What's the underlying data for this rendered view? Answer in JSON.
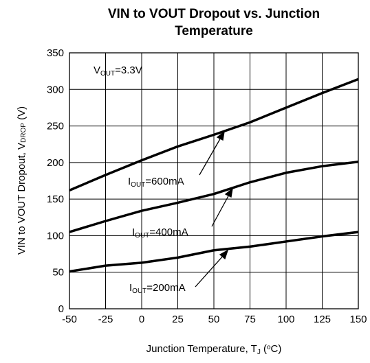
{
  "chart_data": {
    "type": "line",
    "title": "VIN to VOUT Dropout vs. Junction Temperature",
    "x_label": [
      {
        "text": "Junction Temperature, T"
      },
      {
        "text": "J",
        "sub": true
      },
      {
        "text": " ("
      },
      {
        "text": "o",
        "sup": true
      },
      {
        "text": "C)"
      }
    ],
    "y_label": [
      {
        "text": "VIN to VOUT Dropout, V"
      },
      {
        "text": "DROP",
        "sub": true
      },
      {
        "text": " (V)"
      }
    ],
    "x": [
      -50,
      -25,
      0,
      25,
      50,
      75,
      100,
      125,
      150
    ],
    "series": [
      {
        "name": [
          {
            "text": "I"
          },
          {
            "text": "OUT",
            "sub": true
          },
          {
            "text": "=600mA"
          }
        ],
        "color": "#000000",
        "values": [
          162,
          183,
          203,
          222,
          238,
          255,
          275,
          295,
          314
        ]
      },
      {
        "name": [
          {
            "text": "I"
          },
          {
            "text": "OUT",
            "sub": true
          },
          {
            "text": "=400mA"
          }
        ],
        "color": "#000000",
        "values": [
          105,
          120,
          134,
          145,
          157,
          173,
          186,
          195,
          201
        ]
      },
      {
        "name": [
          {
            "text": "I"
          },
          {
            "text": "OUT",
            "sub": true
          },
          {
            "text": "=200mA"
          }
        ],
        "color": "#000000",
        "values": [
          51,
          59,
          63,
          70,
          80,
          85,
          92,
          99,
          105
        ]
      }
    ],
    "annotations": [
      [
        {
          "text": "V"
        },
        {
          "text": "OUT",
          "sub": true
        },
        {
          "text": "=3.3V"
        }
      ]
    ],
    "xlim": [
      -50,
      150
    ],
    "xticks": [
      -50,
      -25,
      0,
      25,
      50,
      75,
      100,
      125,
      150
    ],
    "ylim": [
      0,
      350
    ],
    "yticks": [
      0,
      50,
      100,
      150,
      200,
      250,
      300,
      350
    ],
    "grid": true
  }
}
